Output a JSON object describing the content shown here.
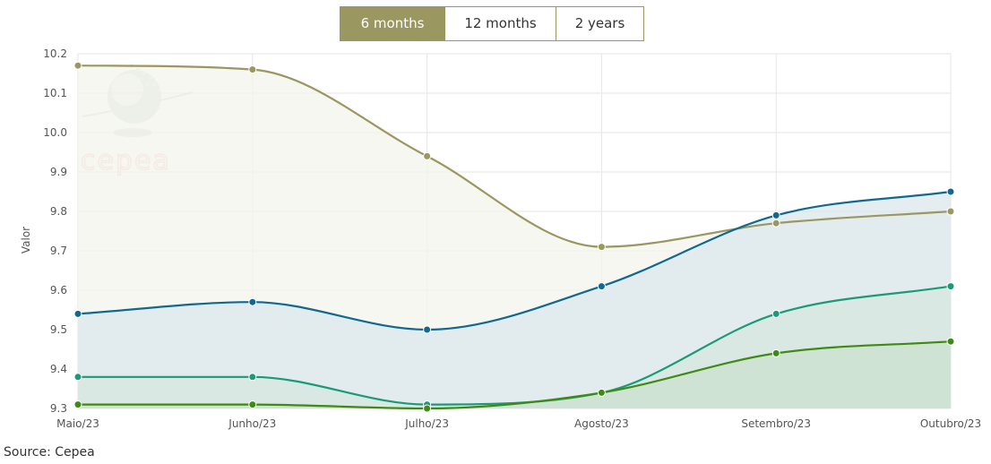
{
  "range_selector": {
    "tabs": [
      {
        "label": "6 months",
        "active": true
      },
      {
        "label": "12 months",
        "active": false
      },
      {
        "label": "2 years",
        "active": false
      }
    ]
  },
  "watermark": {
    "text": "cepea"
  },
  "source": "Source: Cepea",
  "chart_data": {
    "type": "area",
    "categories": [
      "Maio/23",
      "Junho/23",
      "Julho/23",
      "Agosto/23",
      "Setembro/23",
      "Outubro/23"
    ],
    "ylabel": "Valor",
    "ylim": [
      9.3,
      10.2
    ],
    "yticks": [
      "9.3",
      "9.4",
      "9.5",
      "9.6",
      "9.7",
      "9.8",
      "9.9",
      "10.0",
      "10.1",
      "10.2"
    ],
    "grid": true,
    "legend": "none",
    "series": [
      {
        "color": "#9a9760",
        "fill": "#f4f4ec",
        "values": [
          10.17,
          10.16,
          9.94,
          9.71,
          9.77,
          9.8
        ]
      },
      {
        "color": "#11698f",
        "fill": "#dbe8ec",
        "values": [
          9.54,
          9.57,
          9.5,
          9.61,
          9.79,
          9.85
        ]
      },
      {
        "color": "#1a9a78",
        "fill": "#d6e7df",
        "values": [
          9.38,
          9.38,
          9.31,
          9.34,
          9.54,
          9.61
        ]
      },
      {
        "color": "#3f8a12",
        "fill": "#c9e1cd",
        "values": [
          9.31,
          9.31,
          9.3,
          9.34,
          9.44,
          9.47
        ]
      }
    ]
  }
}
